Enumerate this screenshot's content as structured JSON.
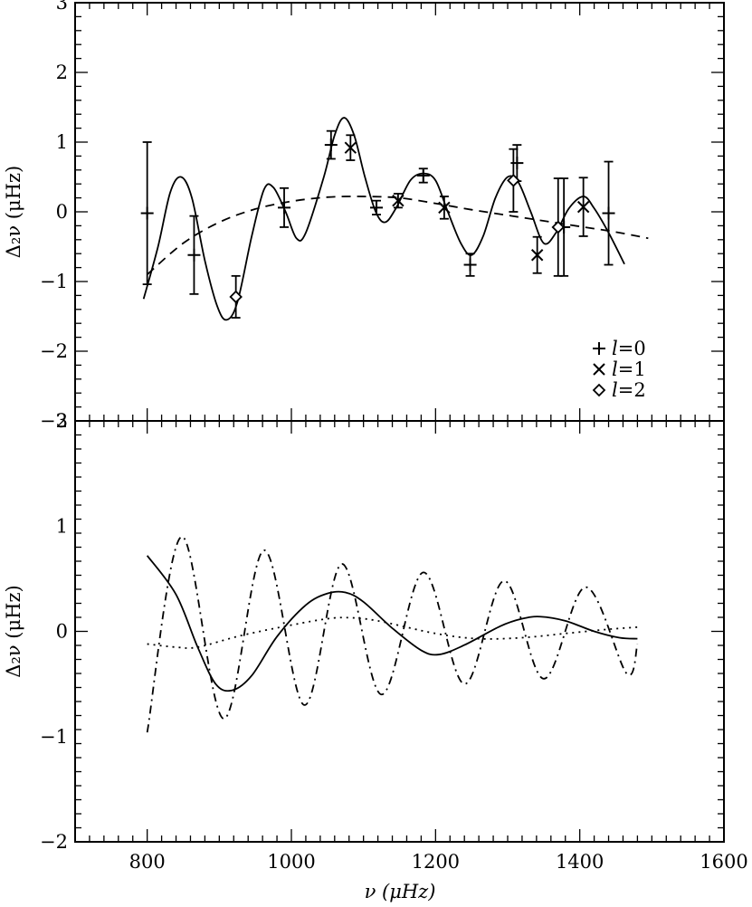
{
  "chart_data": [
    {
      "type": "scatter",
      "panel": "top",
      "xlabel": "",
      "ylabel": "Δ₂ν  (μHz)",
      "xlim": [
        700,
        1600
      ],
      "ylim": [
        -3,
        3
      ],
      "xticks": [
        800,
        1000,
        1200,
        1400,
        1600
      ],
      "yticks": [
        -3,
        -2,
        -1,
        0,
        1,
        2,
        3
      ],
      "grid": false,
      "legend": {
        "placement": "bottom-right"
      },
      "series": [
        {
          "name": "l=0",
          "legend_label": "l",
          "legend_value": "=0",
          "marker": "plus",
          "points": [
            {
              "x": 800,
              "y": -0.02,
              "err": 1.02
            },
            {
              "x": 865,
              "y": -0.62,
              "err": 0.56
            },
            {
              "x": 990,
              "y": 0.06,
              "err": 0.28
            },
            {
              "x": 1055,
              "y": 0.96,
              "err": 0.2
            },
            {
              "x": 1118,
              "y": 0.06,
              "err": 0.1
            },
            {
              "x": 1183,
              "y": 0.52,
              "err": 0.1
            },
            {
              "x": 1248,
              "y": -0.76,
              "err": 0.16
            },
            {
              "x": 1313,
              "y": 0.7,
              "err": 0.26
            },
            {
              "x": 1378,
              "y": -0.22,
              "err": 0.7
            },
            {
              "x": 1440,
              "y": -0.02,
              "err": 0.74
            }
          ]
        },
        {
          "name": "l=1",
          "legend_label": "l",
          "legend_value": "=1",
          "marker": "cross",
          "points": [
            {
              "x": 1082,
              "y": 0.92,
              "err": 0.18
            },
            {
              "x": 1148,
              "y": 0.16,
              "err": 0.1
            },
            {
              "x": 1212,
              "y": 0.06,
              "err": 0.16
            },
            {
              "x": 1341,
              "y": -0.62,
              "err": 0.26
            },
            {
              "x": 1405,
              "y": 0.07,
              "err": 0.42
            }
          ]
        },
        {
          "name": "l=2",
          "legend_label": "l",
          "legend_value": "=2",
          "marker": "diamond",
          "points": [
            {
              "x": 923,
              "y": -1.22,
              "err": 0.3
            },
            {
              "x": 1308,
              "y": 0.45,
              "err": 0.45
            },
            {
              "x": 1370,
              "y": -0.22,
              "err": 0.7
            }
          ]
        }
      ],
      "curves": [
        {
          "id": "fit-oscillatory",
          "style": "solid",
          "points": [
            [
              795,
              -1.25
            ],
            [
              815,
              -0.5
            ],
            [
              832,
              0.28
            ],
            [
              847,
              0.5
            ],
            [
              862,
              0.2
            ],
            [
              880,
              -0.7
            ],
            [
              897,
              -1.35
            ],
            [
              910,
              -1.55
            ],
            [
              925,
              -1.3
            ],
            [
              945,
              -0.35
            ],
            [
              962,
              0.32
            ],
            [
              975,
              0.35
            ],
            [
              992,
              0.0
            ],
            [
              1007,
              -0.38
            ],
            [
              1020,
              -0.3
            ],
            [
              1045,
              0.5
            ],
            [
              1060,
              1.1
            ],
            [
              1073,
              1.35
            ],
            [
              1087,
              1.1
            ],
            [
              1102,
              0.5
            ],
            [
              1117,
              0.0
            ],
            [
              1130,
              -0.15
            ],
            [
              1145,
              0.05
            ],
            [
              1165,
              0.45
            ],
            [
              1183,
              0.55
            ],
            [
              1200,
              0.45
            ],
            [
              1217,
              0.0
            ],
            [
              1235,
              -0.45
            ],
            [
              1250,
              -0.62
            ],
            [
              1266,
              -0.35
            ],
            [
              1283,
              0.2
            ],
            [
              1300,
              0.5
            ],
            [
              1315,
              0.42
            ],
            [
              1332,
              0.0
            ],
            [
              1350,
              -0.45
            ],
            [
              1367,
              -0.3
            ],
            [
              1385,
              0.05
            ],
            [
              1405,
              0.22
            ],
            [
              1420,
              0.05
            ],
            [
              1440,
              -0.3
            ],
            [
              1462,
              -0.75
            ]
          ]
        },
        {
          "id": "fit-smooth",
          "style": "dashed",
          "points": [
            [
              800,
              -0.9
            ],
            [
              850,
              -0.45
            ],
            [
              900,
              -0.15
            ],
            [
              950,
              0.04
            ],
            [
              1000,
              0.15
            ],
            [
              1050,
              0.21
            ],
            [
              1100,
              0.22
            ],
            [
              1150,
              0.2
            ],
            [
              1200,
              0.12
            ],
            [
              1250,
              0.03
            ],
            [
              1300,
              -0.05
            ],
            [
              1350,
              -0.13
            ],
            [
              1400,
              -0.21
            ],
            [
              1450,
              -0.29
            ],
            [
              1495,
              -0.38
            ]
          ]
        }
      ]
    },
    {
      "type": "line",
      "panel": "bottom",
      "xlabel": "ν  (μHz)",
      "ylabel": "Δ₂ν  (μHz)",
      "xlim": [
        700,
        1600
      ],
      "ylim": [
        -2,
        2
      ],
      "xticks": [
        800,
        1000,
        1200,
        1400,
        1600
      ],
      "yticks": [
        -2,
        -1,
        0,
        1,
        2
      ],
      "grid": false,
      "series": [
        {
          "id": "solid-component",
          "style": "solid",
          "points": [
            [
              800,
              0.72
            ],
            [
              840,
              0.35
            ],
            [
              870,
              -0.15
            ],
            [
              895,
              -0.5
            ],
            [
              918,
              -0.56
            ],
            [
              945,
              -0.42
            ],
            [
              980,
              -0.05
            ],
            [
              1020,
              0.25
            ],
            [
              1050,
              0.36
            ],
            [
              1075,
              0.37
            ],
            [
              1100,
              0.28
            ],
            [
              1140,
              0.03
            ],
            [
              1180,
              -0.18
            ],
            [
              1205,
              -0.22
            ],
            [
              1240,
              -0.13
            ],
            [
              1290,
              0.05
            ],
            [
              1320,
              0.12
            ],
            [
              1345,
              0.14
            ],
            [
              1380,
              0.1
            ],
            [
              1420,
              0.0
            ],
            [
              1455,
              -0.06
            ],
            [
              1480,
              -0.07
            ]
          ]
        },
        {
          "id": "dotted-component",
          "style": "dotted",
          "points": [
            [
              800,
              -0.12
            ],
            [
              840,
              -0.15
            ],
            [
              870,
              -0.15
            ],
            [
              930,
              -0.04
            ],
            [
              1000,
              0.06
            ],
            [
              1050,
              0.12
            ],
            [
              1080,
              0.13
            ],
            [
              1120,
              0.1
            ],
            [
              1200,
              -0.02
            ],
            [
              1260,
              -0.07
            ],
            [
              1320,
              -0.06
            ],
            [
              1380,
              -0.02
            ],
            [
              1440,
              0.02
            ],
            [
              1480,
              0.04
            ]
          ]
        },
        {
          "id": "dashdot-component",
          "style": "dashdot",
          "cycles": [
            [
              800,
              -0.96
            ],
            [
              848,
              0.9
            ],
            [
              906,
              -0.83
            ],
            [
              962,
              0.77
            ],
            [
              1018,
              -0.7
            ],
            [
              1070,
              0.64
            ],
            [
              1125,
              -0.6
            ],
            [
              1183,
              0.56
            ],
            [
              1240,
              -0.5
            ],
            [
              1295,
              0.48
            ],
            [
              1350,
              -0.45
            ],
            [
              1408,
              0.42
            ],
            [
              1465,
              -0.4
            ],
            [
              1480,
              -0.12
            ]
          ]
        }
      ]
    }
  ]
}
